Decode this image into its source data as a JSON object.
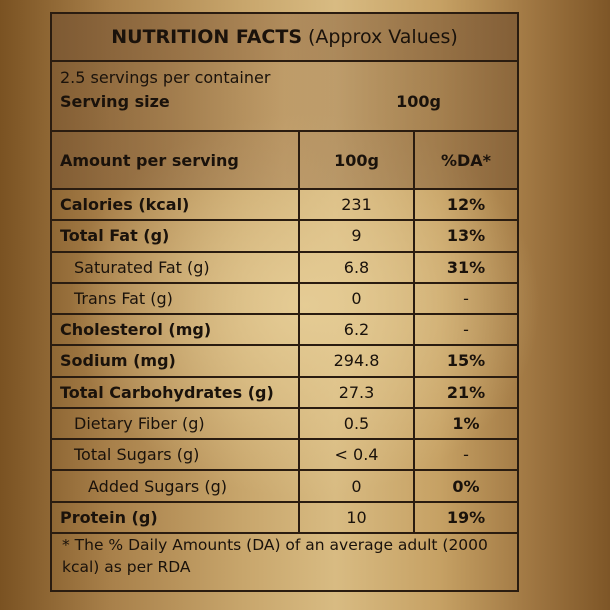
{
  "title": {
    "bold": "NUTRITION FACTS",
    "rest": "(Approx Values)"
  },
  "servings_per_container": "2.5 servings per container",
  "serving_size": {
    "label": "Serving size",
    "value": "100g"
  },
  "header": {
    "amount": "Amount per serving",
    "per100": "100g",
    "da": "%DA*"
  },
  "rows": [
    {
      "name": "Calories (kcal)",
      "value": "231",
      "da": "12%",
      "bold": true,
      "level": 0
    },
    {
      "name": "Total Fat (g)",
      "value": "9",
      "da": "13%",
      "bold": true,
      "level": 0
    },
    {
      "name": "Saturated Fat (g)",
      "value": "6.8",
      "da": "31%",
      "bold": false,
      "level": 1
    },
    {
      "name": "Trans Fat (g)",
      "value": "0",
      "da": "-",
      "bold": false,
      "level": 1
    },
    {
      "name": "Cholesterol (mg)",
      "value": "6.2",
      "da": "-",
      "bold": true,
      "level": 0
    },
    {
      "name": "Sodium (mg)",
      "value": "294.8",
      "da": "15%",
      "bold": true,
      "level": 0
    },
    {
      "name": "Total Carbohydrates (g)",
      "value": "27.3",
      "da": "21%",
      "bold": true,
      "level": 0
    },
    {
      "name": "Dietary Fiber (g)",
      "value": "0.5",
      "da": "1%",
      "bold": false,
      "level": 1
    },
    {
      "name": "Total Sugars (g)",
      "value": "< 0.4",
      "da": "-",
      "bold": false,
      "level": 1
    },
    {
      "name": "Added Sugars (g)",
      "value": "0",
      "da": "0%",
      "bold": false,
      "level": 2
    },
    {
      "name": "Protein (g)",
      "value": "10",
      "da": "19%",
      "bold": true,
      "level": 0
    }
  ],
  "footnote": "* The % Daily Amounts (DA) of an average adult (2000 kcal) as per RDA"
}
